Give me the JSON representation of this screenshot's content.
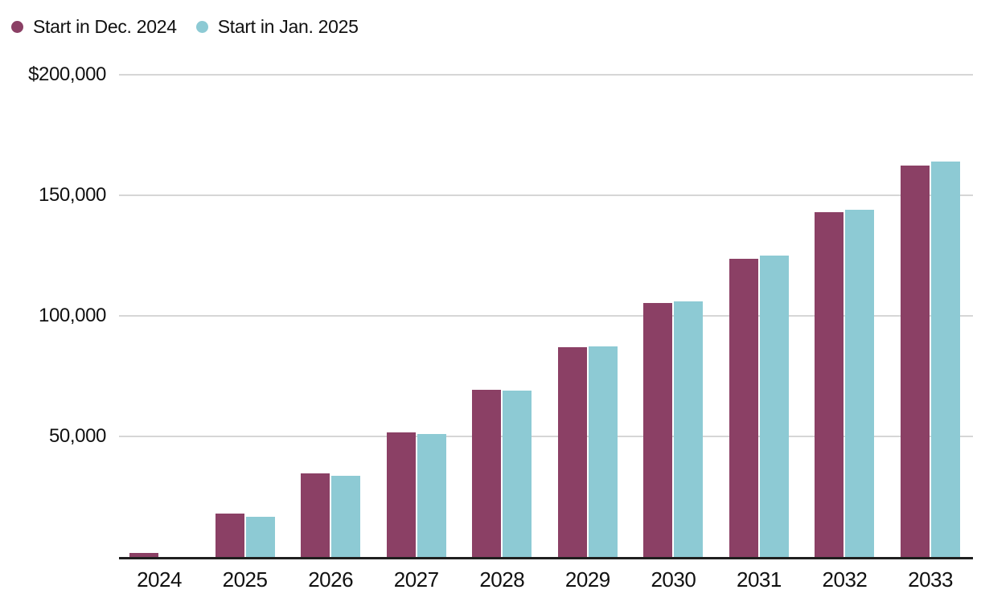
{
  "legend": {
    "items": [
      {
        "label": "Start in Dec. 2024",
        "color": "#8B4065"
      },
      {
        "label": "Start in Jan. 2025",
        "color": "#8DCAD4"
      }
    ]
  },
  "chart_data": {
    "type": "bar",
    "title": "",
    "xlabel": "",
    "ylabel": "",
    "categories": [
      "2024",
      "2025",
      "2026",
      "2027",
      "2028",
      "2029",
      "2030",
      "2031",
      "2032",
      "2033"
    ],
    "series": [
      {
        "name": "Start in Dec. 2024",
        "color": "#8B4065",
        "values": [
          1800,
          18000,
          34700,
          51700,
          69300,
          87000,
          105300,
          123700,
          143000,
          162300
        ]
      },
      {
        "name": "Start in Jan. 2025",
        "color": "#8DCAD4",
        "values": [
          0,
          16700,
          33700,
          51000,
          69000,
          87300,
          106000,
          125000,
          144000,
          164000
        ]
      }
    ],
    "ylim": [
      0,
      200000
    ],
    "ytick_interval": 50000,
    "ytick_labels_top_to_bottom": [
      "$200,000",
      "150,000",
      "100,000",
      "50,000"
    ],
    "grid": "horizontal",
    "legend_position": "top-left",
    "baseline_label_shown": false
  }
}
